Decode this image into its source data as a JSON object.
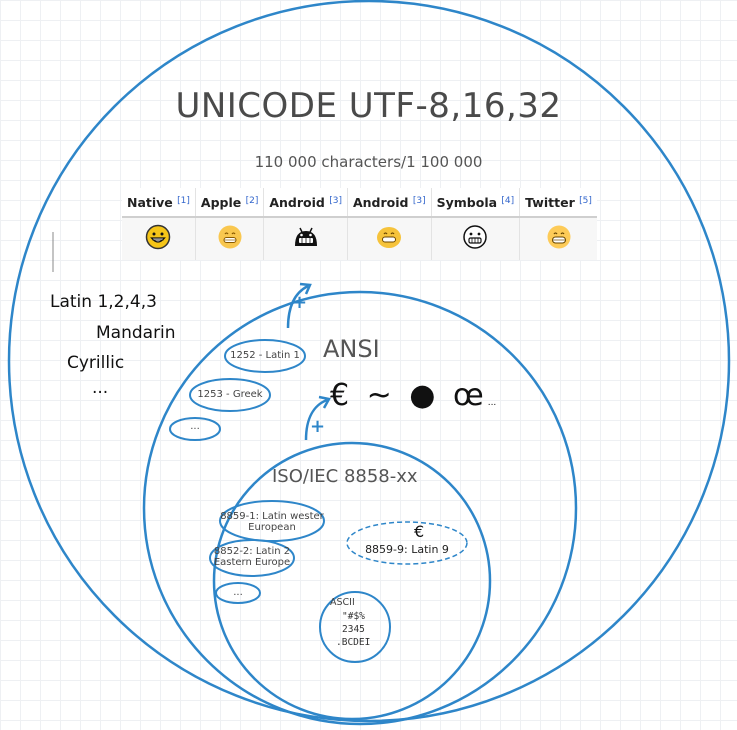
{
  "title": "UNICODE UTF-8,16,32",
  "subtitle": "110 000 characters/1 100 000",
  "emoji_table": {
    "columns": [
      {
        "label": "Native",
        "ref": "[1]"
      },
      {
        "label": "Apple",
        "ref": "[2]"
      },
      {
        "label": "Android",
        "ref": "[3]"
      },
      {
        "label": "Android",
        "ref": "[3]"
      },
      {
        "label": "Symbola",
        "ref": "[4]"
      },
      {
        "label": "Twitter",
        "ref": "[5]"
      }
    ]
  },
  "unicode_scripts": [
    "Latin 1,2,4,3",
    "Mandarin",
    "Cyrillic",
    "..."
  ],
  "ansi": {
    "label": "ANSI",
    "plus": "+",
    "codepages": [
      "1252 - Latin 1",
      "1253 - Greek",
      "..."
    ],
    "symbols": "€ ~ ● œ",
    "symbols_trailer": "..."
  },
  "iso": {
    "label": "ISO/IEC 8858-xx",
    "plus": "+",
    "parts": [
      {
        "line1": "8859-1: Latin wester",
        "line2": "European"
      },
      {
        "line1": "8852-2: Latin 2",
        "line2": "Eastern Europe"
      },
      {
        "line1": "...",
        "line2": ""
      }
    ],
    "euro_symbol": "€",
    "latin9": "8859-9: Latin 9"
  },
  "ascii": {
    "label": "ASCII",
    "lines": [
      "\"#$%",
      "2345",
      ".BCDEI"
    ]
  },
  "colors": {
    "accent": "#2e86c9",
    "text": "#4a4a4a"
  }
}
